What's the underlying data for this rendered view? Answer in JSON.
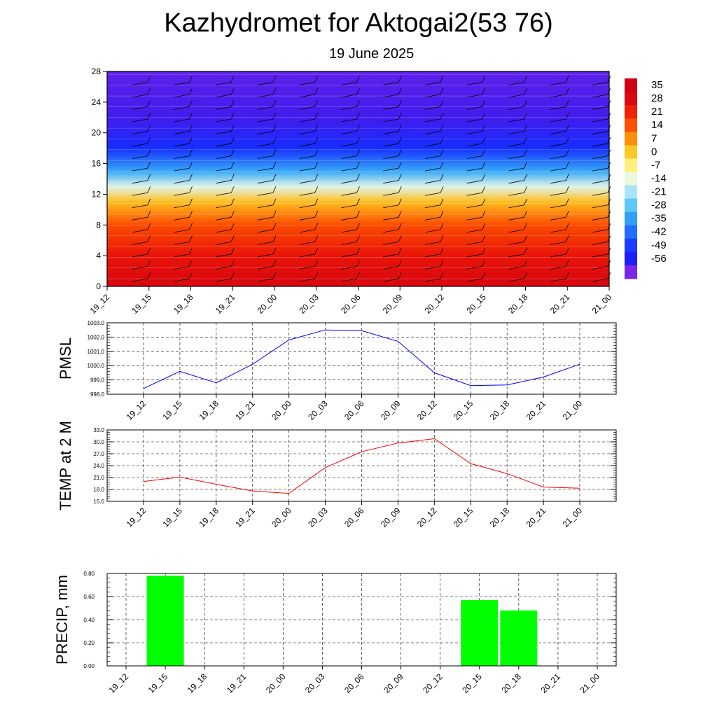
{
  "page": {
    "title": "Kazhydromet for Aktogai2(53 76)",
    "subtitle": "19 June 2025"
  },
  "chart_data": [
    {
      "type": "heatmap",
      "title": "",
      "x_categories": [
        "19_12",
        "19_15",
        "19_18",
        "19_21",
        "20_00",
        "20_03",
        "20_06",
        "20_09",
        "20_12",
        "20_15",
        "20_18",
        "20_21",
        "21_00"
      ],
      "y_ticks": [
        0,
        4,
        8,
        12,
        16,
        20,
        24,
        28
      ],
      "ylim": [
        0,
        28
      ],
      "colorbar_labels": [
        "35",
        "28",
        "21",
        "14",
        "7",
        "0",
        "-7",
        "-14",
        "-21",
        "-28",
        "-35",
        "-42",
        "-49",
        "-56"
      ],
      "temperature_by_height": [
        {
          "height": 0,
          "value": 32
        },
        {
          "height": 4,
          "value": 27
        },
        {
          "height": 8,
          "value": 18
        },
        {
          "height": 11,
          "value": 5
        },
        {
          "height": 13,
          "value": -12
        },
        {
          "height": 15,
          "value": -30
        },
        {
          "height": 18,
          "value": -48
        },
        {
          "height": 22,
          "value": -58
        },
        {
          "height": 28,
          "value": -60
        }
      ],
      "overlay": "wind barbs"
    },
    {
      "type": "line",
      "ylabel": "PMSL",
      "x": [
        "19_12",
        "19_15",
        "19_18",
        "19_21",
        "20_00",
        "20_03",
        "20_06",
        "20_09",
        "20_12",
        "20_15",
        "20_18",
        "20_21",
        "21_00"
      ],
      "series": [
        {
          "values": [
            998.4,
            999.6,
            998.8,
            1000.1,
            1001.8,
            1002.5,
            1002.45,
            1001.7,
            999.5,
            998.6,
            998.65,
            999.2,
            1000.1
          ]
        }
      ],
      "ylim": [
        998.0,
        1003.0
      ],
      "yticks": [
        "998.0",
        "999.0",
        "1000.0",
        "1001.0",
        "1002.0",
        "1003.0"
      ],
      "color": "#0000ff",
      "grid": true
    },
    {
      "type": "line",
      "ylabel": "TEMP at 2 M",
      "x": [
        "19_12",
        "19_15",
        "19_18",
        "19_21",
        "20_00",
        "20_03",
        "20_06",
        "20_09",
        "20_12",
        "20_15",
        "20_18",
        "20_21",
        "21_00"
      ],
      "series": [
        {
          "values": [
            20.0,
            21.1,
            19.3,
            17.6,
            17.0,
            23.5,
            27.5,
            29.7,
            30.8,
            24.5,
            22.0,
            18.6,
            18.3
          ]
        }
      ],
      "ylim": [
        15.0,
        33.0
      ],
      "yticks": [
        "15.0",
        "18.0",
        "21.0",
        "24.0",
        "27.0",
        "30.0",
        "33.0"
      ],
      "color": "#ff0000",
      "grid": true
    },
    {
      "type": "bar",
      "ylabel": "PRECIP, mm",
      "categories": [
        "19_12",
        "19_15",
        "19_18",
        "19_21",
        "20_00",
        "20_03",
        "20_06",
        "20_09",
        "20_12",
        "20_15",
        "20_18",
        "20_21",
        "21_00"
      ],
      "values": [
        0,
        0.78,
        0,
        0,
        0,
        0,
        0,
        0,
        0,
        0.57,
        0.48,
        0,
        0
      ],
      "ylim": [
        0,
        0.8
      ],
      "yticks": [
        "0.00",
        "0.20",
        "0.40",
        "0.60",
        "0.80"
      ],
      "color": "#00ff00",
      "grid": true
    }
  ]
}
